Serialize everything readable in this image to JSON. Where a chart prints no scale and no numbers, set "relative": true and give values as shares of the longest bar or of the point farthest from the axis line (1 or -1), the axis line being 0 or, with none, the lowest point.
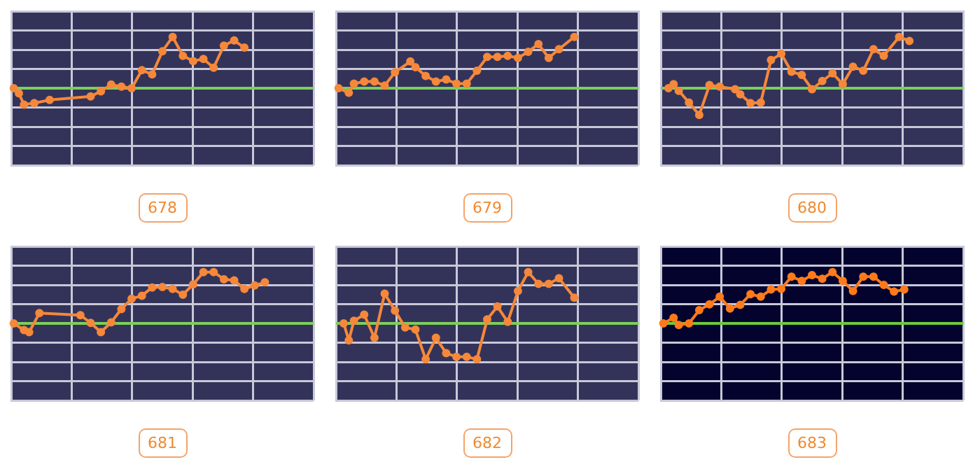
{
  "chart_data": [
    {
      "type": "line",
      "title": "678",
      "relative": true,
      "grid": true,
      "legend": false,
      "tick_labels": false,
      "marker": "circle",
      "line_style": "solid",
      "ref_lines": [
        {
          "axis": "y",
          "value": 0,
          "color": "#7ccf5a"
        }
      ],
      "categories": [
        null,
        null,
        null,
        null,
        null,
        null,
        null,
        null,
        null,
        null,
        null,
        null,
        null,
        null,
        null,
        null,
        null,
        null,
        null,
        null,
        null,
        null,
        null,
        null,
        null,
        null,
        null,
        null,
        null,
        null,
        null,
        null,
        null,
        null,
        null,
        null,
        null,
        null,
        null,
        null,
        null,
        null,
        null,
        null,
        null,
        null,
        null,
        null,
        null,
        null,
        null,
        null,
        null,
        null,
        null,
        null,
        null,
        null,
        null
      ],
      "series": [
        {
          "color": "#f5883a",
          "values": [
            0,
            -0.1,
            -0.32,
            null,
            -0.29,
            null,
            null,
            -0.23,
            null,
            null,
            null,
            null,
            null,
            null,
            null,
            -0.16,
            null,
            -0.06,
            null,
            0.07,
            null,
            0.03,
            null,
            0,
            null,
            0.35,
            null,
            0.27,
            null,
            0.72,
            null,
            1,
            null,
            0.63,
            null,
            0.53,
            null,
            0.57,
            null,
            0.4,
            null,
            0.83,
            null,
            0.93,
            null,
            0.79,
            null,
            null,
            null,
            null,
            null,
            null,
            null,
            null,
            null,
            null,
            null,
            null,
            null
          ]
        }
      ]
    },
    {
      "type": "line",
      "title": "679",
      "relative": true,
      "grid": true,
      "legend": false,
      "tick_labels": false,
      "marker": "circle",
      "line_style": "solid",
      "ref_lines": [
        {
          "axis": "y",
          "value": 0,
          "color": "#7ccf5a"
        }
      ],
      "categories": [
        null,
        null,
        null,
        null,
        null,
        null,
        null,
        null,
        null,
        null,
        null,
        null,
        null,
        null,
        null,
        null,
        null,
        null,
        null,
        null,
        null,
        null,
        null,
        null,
        null,
        null,
        null,
        null,
        null,
        null,
        null,
        null,
        null,
        null,
        null,
        null,
        null,
        null,
        null,
        null,
        null,
        null,
        null,
        null,
        null,
        null,
        null,
        null,
        null,
        null,
        null,
        null,
        null,
        null,
        null,
        null,
        null,
        null,
        null
      ],
      "series": [
        {
          "color": "#f5883a",
          "values": [
            0,
            null,
            -0.09,
            0.09,
            null,
            0.13,
            null,
            0.13,
            null,
            0.05,
            null,
            0.31,
            null,
            null,
            0.52,
            0.41,
            null,
            0.24,
            null,
            0.13,
            null,
            0.17,
            null,
            0.09,
            null,
            0.09,
            null,
            0.34,
            null,
            0.61,
            null,
            0.61,
            null,
            0.63,
            null,
            0.59,
            null,
            0.71,
            null,
            0.86,
            null,
            0.59,
            null,
            0.76,
            null,
            null,
            1,
            null,
            null,
            null,
            null,
            null,
            null,
            null,
            null,
            null,
            null,
            null,
            null
          ]
        }
      ]
    },
    {
      "type": "line",
      "title": "680",
      "relative": true,
      "grid": true,
      "legend": false,
      "tick_labels": false,
      "marker": "circle",
      "line_style": "solid",
      "ref_lines": [
        {
          "axis": "y",
          "value": 0,
          "color": "#7ccf5a"
        }
      ],
      "categories": [
        null,
        null,
        null,
        null,
        null,
        null,
        null,
        null,
        null,
        null,
        null,
        null,
        null,
        null,
        null,
        null,
        null,
        null,
        null,
        null,
        null,
        null,
        null,
        null,
        null,
        null,
        null,
        null,
        null,
        null,
        null,
        null,
        null,
        null,
        null,
        null,
        null,
        null,
        null,
        null,
        null,
        null,
        null,
        null,
        null,
        null,
        null,
        null,
        null,
        null,
        null,
        null,
        null,
        null,
        null,
        null,
        null,
        null,
        null
      ],
      "series": [
        {
          "color": "#f5883a",
          "values": [
            null,
            0,
            0.08,
            -0.05,
            null,
            -0.28,
            null,
            -0.52,
            null,
            0.06,
            null,
            0.03,
            null,
            null,
            -0.02,
            -0.12,
            null,
            -0.29,
            null,
            -0.28,
            null,
            0.55,
            null,
            0.67,
            null,
            0.32,
            null,
            0.26,
            null,
            -0.02,
            null,
            0.14,
            null,
            0.29,
            null,
            0.08,
            null,
            0.42,
            null,
            0.34,
            null,
            0.76,
            null,
            0.63,
            null,
            null,
            1,
            null,
            0.92,
            null,
            null,
            null,
            null,
            null,
            null,
            null,
            null,
            null,
            null
          ]
        }
      ]
    },
    {
      "type": "line",
      "title": "681",
      "relative": true,
      "grid": true,
      "legend": false,
      "tick_labels": false,
      "marker": "circle",
      "line_style": "solid",
      "ref_lines": [
        {
          "axis": "y",
          "value": 0,
          "color": "#7ccf5a"
        }
      ],
      "categories": [
        null,
        null,
        null,
        null,
        null,
        null,
        null,
        null,
        null,
        null,
        null,
        null,
        null,
        null,
        null,
        null,
        null,
        null,
        null,
        null,
        null,
        null,
        null,
        null,
        null,
        null,
        null,
        null,
        null,
        null,
        null,
        null,
        null,
        null,
        null,
        null,
        null,
        null,
        null,
        null,
        null,
        null,
        null,
        null,
        null,
        null,
        null,
        null,
        null,
        null,
        null,
        null,
        null,
        null,
        null,
        null,
        null,
        null,
        null
      ],
      "series": [
        {
          "color": "#f5883a",
          "values": [
            0,
            null,
            -0.13,
            -0.17,
            null,
            0.2,
            null,
            null,
            null,
            null,
            null,
            null,
            null,
            0.16,
            null,
            0.01,
            null,
            -0.17,
            null,
            0.02,
            null,
            0.28,
            null,
            0.48,
            null,
            0.54,
            null,
            0.7,
            null,
            0.71,
            null,
            0.67,
            null,
            0.56,
            null,
            0.76,
            null,
            1,
            null,
            1,
            null,
            0.86,
            null,
            0.84,
            null,
            0.67,
            null,
            0.74,
            null,
            0.8,
            null,
            null,
            null,
            null,
            null,
            null,
            null,
            null,
            null
          ]
        }
      ]
    },
    {
      "type": "line",
      "title": "682",
      "relative": true,
      "grid": true,
      "legend": false,
      "tick_labels": false,
      "marker": "circle",
      "line_style": "solid",
      "ref_lines": [
        {
          "axis": "y",
          "value": 0,
          "color": "#7ccf5a"
        }
      ],
      "categories": [
        null,
        null,
        null,
        null,
        null,
        null,
        null,
        null,
        null,
        null,
        null,
        null,
        null,
        null,
        null,
        null,
        null,
        null,
        null,
        null,
        null,
        null,
        null,
        null,
        null,
        null,
        null,
        null,
        null,
        null,
        null,
        null,
        null,
        null,
        null,
        null,
        null,
        null,
        null,
        null,
        null,
        null,
        null,
        null,
        null,
        null,
        null,
        null,
        null,
        null,
        null,
        null,
        null,
        null,
        null,
        null,
        null,
        null,
        null
      ],
      "series": [
        {
          "color": "#f5883a",
          "values": [
            null,
            0,
            -0.33,
            0.05,
            null,
            0.17,
            null,
            -0.28,
            null,
            0.58,
            null,
            0.25,
            null,
            -0.08,
            null,
            -0.12,
            null,
            -0.7,
            null,
            -0.28,
            null,
            -0.58,
            null,
            -0.65,
            null,
            -0.65,
            null,
            -0.7,
            null,
            0.08,
            null,
            0.33,
            null,
            0.03,
            null,
            0.63,
            null,
            1,
            null,
            0.77,
            null,
            0.77,
            null,
            0.88,
            null,
            null,
            0.5,
            null,
            null,
            null,
            null,
            null,
            null,
            null,
            null,
            null,
            null,
            null,
            null
          ]
        }
      ]
    },
    {
      "type": "line",
      "title": "683",
      "relative": true,
      "grid": true,
      "legend": false,
      "tick_labels": false,
      "marker": "circle",
      "line_style": "solid",
      "ref_lines": [
        {
          "axis": "y",
          "value": 0,
          "color": "#6cc83c"
        }
      ],
      "categories": [
        null,
        null,
        null,
        null,
        null,
        null,
        null,
        null,
        null,
        null,
        null,
        null,
        null,
        null,
        null,
        null,
        null,
        null,
        null,
        null,
        null,
        null,
        null,
        null,
        null,
        null,
        null,
        null,
        null,
        null,
        null,
        null,
        null,
        null,
        null,
        null,
        null,
        null,
        null,
        null,
        null,
        null,
        null,
        null,
        null,
        null,
        null,
        null,
        null,
        null,
        null,
        null,
        null,
        null,
        null,
        null,
        null,
        null,
        null
      ],
      "series": [
        {
          "color": "#ff7a1a",
          "values": [
            0,
            null,
            0.11,
            -0.03,
            null,
            0,
            null,
            0.26,
            null,
            0.37,
            null,
            0.52,
            null,
            0.29,
            null,
            0.36,
            null,
            0.57,
            null,
            0.52,
            null,
            0.66,
            null,
            0.67,
            null,
            0.91,
            null,
            0.83,
            null,
            0.94,
            null,
            0.87,
            null,
            1,
            null,
            0.83,
            null,
            0.63,
            null,
            0.91,
            null,
            0.91,
            null,
            0.75,
            null,
            0.62,
            null,
            0.66,
            null,
            null,
            null,
            null,
            null,
            null,
            null,
            null,
            null,
            null,
            null
          ]
        }
      ]
    }
  ]
}
